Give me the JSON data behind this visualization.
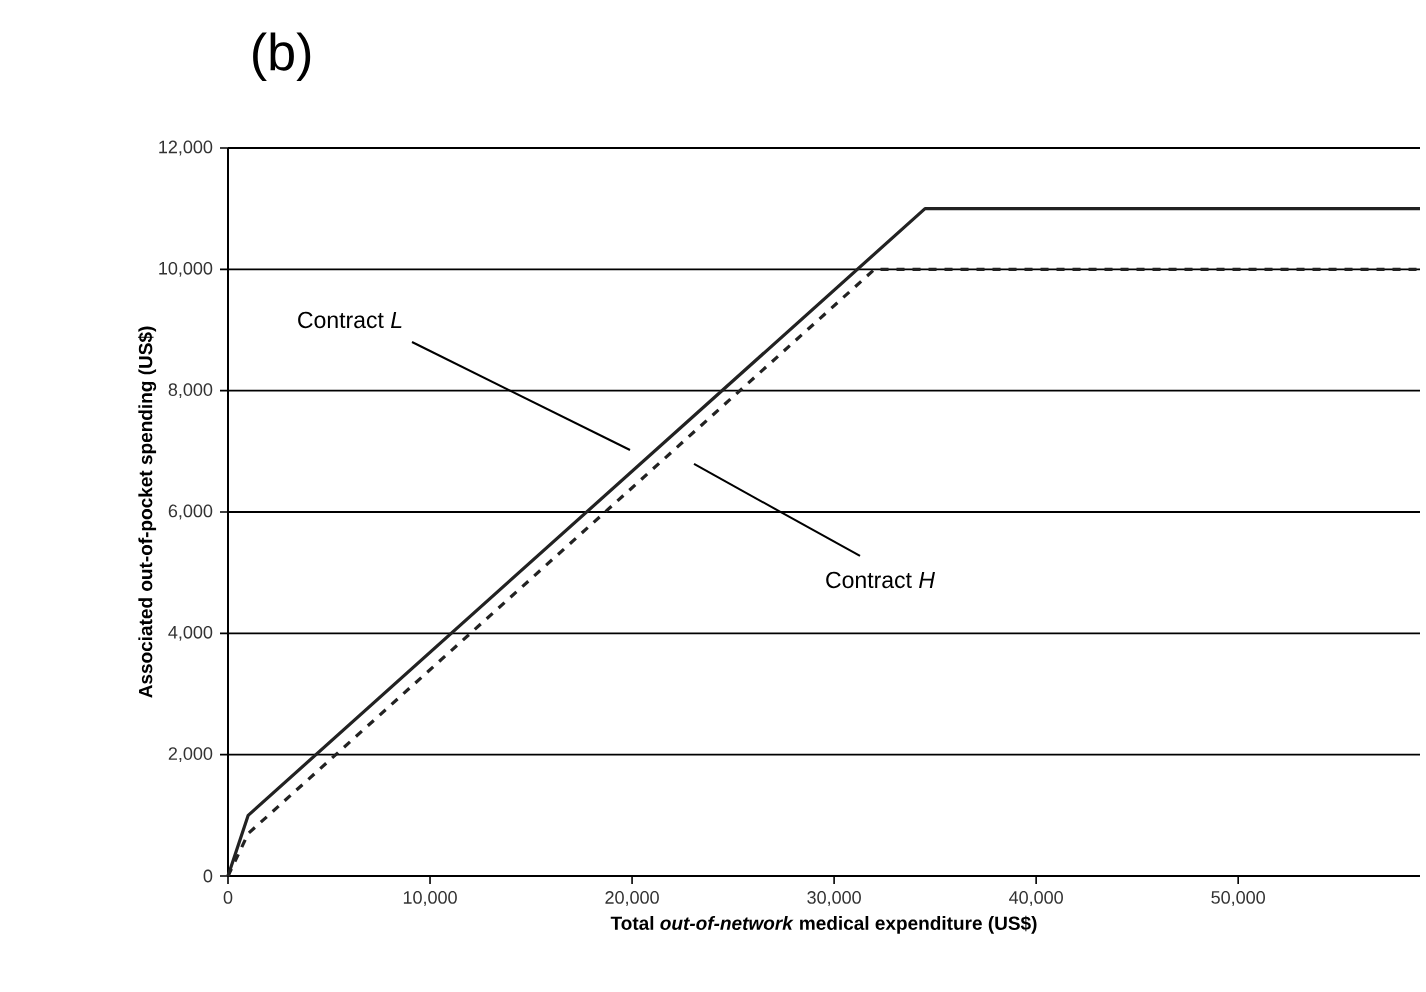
{
  "chart_data": {
    "type": "line",
    "title": "(b)",
    "xlabel": "Total *out-of-network* medical expenditure (US$)",
    "ylabel": "Associated out-of-pocket spending (US$)",
    "xlim": [
      0,
      59000
    ],
    "ylim": [
      0,
      12000
    ],
    "xticks": [
      0,
      {
        "value": 10000,
        "label": "10,000"
      },
      {
        "value": 20000,
        "label": "20,000"
      },
      {
        "value": 30000,
        "label": "30,000"
      },
      {
        "value": 40000,
        "label": "40,000"
      },
      {
        "value": 50000,
        "label": "50,000"
      }
    ],
    "yticks": [
      0,
      {
        "value": 2000,
        "label": "2,000"
      },
      {
        "value": 4000,
        "label": "4,000"
      },
      {
        "value": 6000,
        "label": "6,000"
      },
      {
        "value": 8000,
        "label": "8,000"
      },
      {
        "value": 10000,
        "label": "10,000"
      },
      {
        "value": 12000,
        "label": "12,000"
      }
    ],
    "grid": "y",
    "series": [
      {
        "color": "#222222",
        "line_style": "solid",
        "x": [
          0,
          1000,
          34500,
          59000
        ],
        "values": [
          0,
          1000,
          11000,
          11000
        ]
      },
      {
        "color": "#222222",
        "line_style": "dashed",
        "x": [
          0,
          1000,
          32000,
          59000
        ],
        "values": [
          0,
          700,
          10000,
          10000
        ]
      }
    ],
    "annotations": [
      "Contract *L*",
      "Contract *H*"
    ]
  }
}
